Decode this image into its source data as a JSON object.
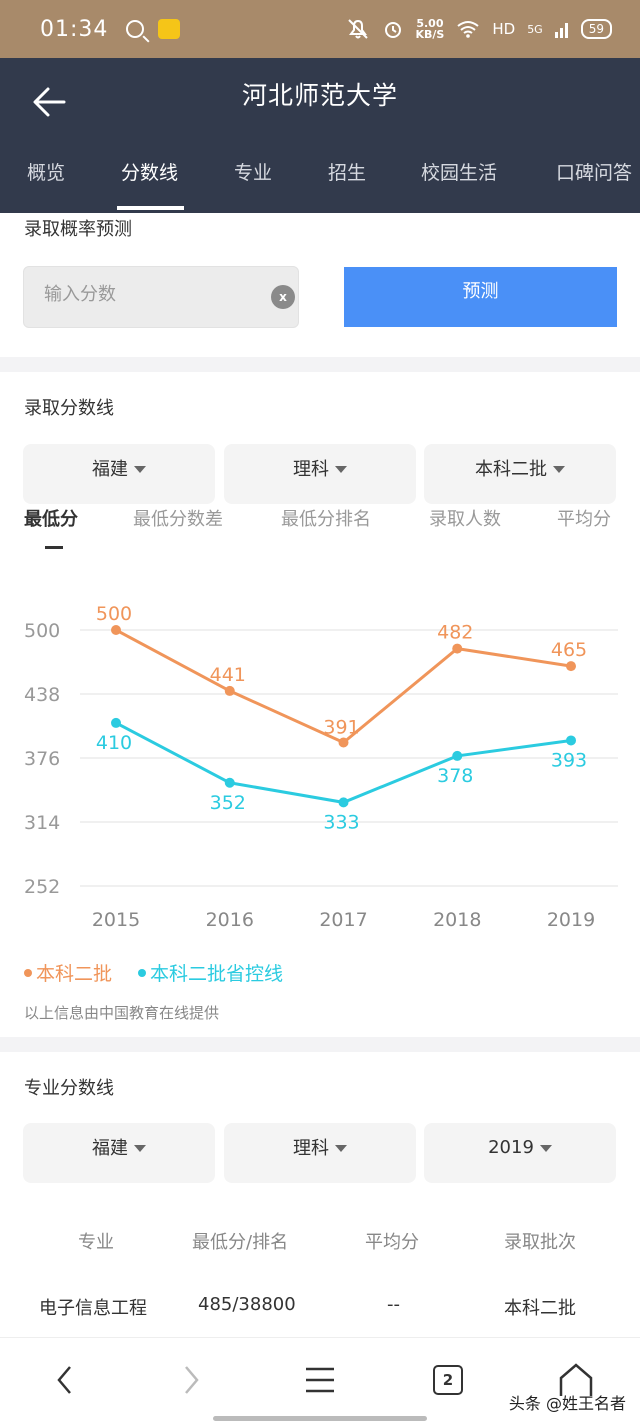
{
  "status_bar": {
    "time": "01:34",
    "net_speed_value": "5.00",
    "net_speed_unit": "KB/S",
    "network": "HD",
    "signal": "5G",
    "battery": "59"
  },
  "header": {
    "title": "河北师范大学",
    "tabs": [
      "概览",
      "分数线",
      "专业",
      "招生",
      "校园生活",
      "口碑问答"
    ],
    "active_tab": "分数线"
  },
  "predict": {
    "title": "录取概率预测",
    "input_placeholder": "输入分数",
    "input_value": "",
    "button_label": "预测"
  },
  "admission": {
    "title": "录取分数线",
    "filters": [
      "福建",
      "理科",
      "本科二批"
    ],
    "metric_tabs": [
      "最低分",
      "最低分数差",
      "最低分排名",
      "录取人数",
      "平均分"
    ],
    "active_metric": "最低分",
    "source_note": "以上信息由中国教育在线提供"
  },
  "chart_data": {
    "type": "line",
    "categories": [
      "2015",
      "2016",
      "2017",
      "2018",
      "2019"
    ],
    "series": [
      {
        "name": "本科二批",
        "color": "#f0955a",
        "values": [
          500,
          441,
          391,
          482,
          465
        ]
      },
      {
        "name": "本科二批省控线",
        "color": "#2bcbe0",
        "values": [
          410,
          352,
          333,
          378,
          393
        ]
      }
    ],
    "yticks": [
      500,
      438,
      376,
      314,
      252
    ],
    "ylim": [
      252,
      500
    ],
    "grid": true,
    "legend_position": "bottom-left"
  },
  "major": {
    "title": "专业分数线",
    "filters": [
      "福建",
      "理科",
      "2019"
    ],
    "columns": [
      "专业",
      "最低分/排名",
      "平均分",
      "录取批次"
    ],
    "rows": [
      [
        "电子信息工程",
        "485/38800",
        "--",
        "本科二批"
      ]
    ]
  },
  "bottom_nav": {
    "tab_count": "2"
  },
  "watermark": "头条 @姓王名者"
}
